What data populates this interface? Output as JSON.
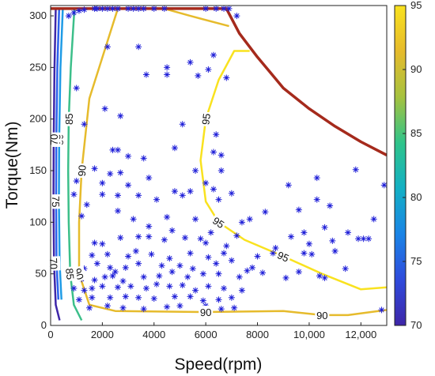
{
  "chart_data": {
    "type": "contour",
    "xlabel": "Speed(rpm)",
    "ylabel": "Torque(Nm)",
    "xlim": [
      0,
      13000
    ],
    "ylim": [
      0,
      310
    ],
    "x_ticks": [
      0,
      2000,
      4000,
      6000,
      8000,
      10000,
      12000
    ],
    "x_tick_labels": [
      "0",
      "2000",
      "4000",
      "6000",
      "8000",
      "10,000",
      "12,000"
    ],
    "y_ticks": [
      0,
      50,
      100,
      150,
      200,
      250,
      300
    ],
    "y_tick_labels": [
      "0",
      "50",
      "100",
      "150",
      "200",
      "250",
      "300"
    ],
    "colorbar": {
      "range": [
        70,
        95
      ],
      "ticks": [
        70,
        75,
        80,
        85,
        90,
        95
      ],
      "tick_labels": [
        "70",
        "75",
        "80",
        "85",
        "90",
        "95"
      ],
      "colors": [
        "#3e26a8",
        "#2f4bdc",
        "#1a84e6",
        "#13b0c4",
        "#2fc48a",
        "#a6c23f",
        "#e6bb2c",
        "#f9e21f"
      ]
    },
    "boundary": {
      "name": "max torque",
      "color": "#a52a1c",
      "points": [
        [
          0,
          307
        ],
        [
          6800,
          307
        ],
        [
          7300,
          283
        ],
        [
          8000,
          260
        ],
        [
          8500,
          245
        ],
        [
          9000,
          230
        ],
        [
          10000,
          210
        ],
        [
          11000,
          193
        ],
        [
          12000,
          178
        ],
        [
          13000,
          165
        ]
      ]
    },
    "contours": [
      {
        "level": 95,
        "color": "#f9e21f",
        "labels": [
          "95",
          "95",
          "95"
        ],
        "paths": [
          [
            [
              7700,
              266
            ],
            [
              7100,
              266
            ],
            [
              6500,
              238
            ],
            [
              6000,
              200
            ],
            [
              5800,
              160
            ],
            [
              6000,
              120
            ],
            [
              6500,
              100
            ],
            [
              7500,
              83
            ],
            [
              9000,
              67
            ],
            [
              10500,
              50
            ],
            [
              12000,
              35
            ],
            [
              13000,
              37
            ]
          ]
        ]
      },
      {
        "level": 90,
        "color": "#e6bb2c",
        "labels": [
          "90",
          "90",
          "90",
          "90"
        ],
        "paths": [
          [
            [
              2600,
              307
            ],
            [
              1500,
              220
            ],
            [
              1200,
              150
            ],
            [
              1100,
              100
            ],
            [
              1100,
              50
            ],
            [
              1500,
              20
            ],
            [
              2500,
              14
            ],
            [
              6000,
              13
            ],
            [
              9000,
              14
            ],
            [
              10500,
              10
            ],
            [
              11500,
              10
            ],
            [
              13000,
              15
            ]
          ],
          [
            [
              4400,
              307
            ],
            [
              5400,
              300
            ],
            [
              6900,
              290
            ]
          ]
        ]
      },
      {
        "level": 85,
        "color": "#3cbf8a",
        "labels": [
          "85",
          "85"
        ],
        "paths": [
          [
            [
              920,
              307
            ],
            [
              780,
              250
            ],
            [
              700,
              200
            ],
            [
              680,
              150
            ],
            [
              700,
              100
            ],
            [
              760,
              50
            ],
            [
              900,
              20
            ],
            [
              1200,
              5
            ]
          ]
        ]
      },
      {
        "level": 80,
        "color": "#1f9be6",
        "labels": [
          "80",
          "80"
        ],
        "paths": [
          [
            [
              470,
              307
            ],
            [
              380,
              250
            ],
            [
              330,
              180
            ],
            [
              320,
              120
            ],
            [
              350,
              60
            ],
            [
              420,
              25
            ]
          ]
        ]
      },
      {
        "level": 75,
        "color": "#2b62ec",
        "labels": [
          "75",
          "75"
        ],
        "paths": [
          [
            [
              330,
              307
            ],
            [
              260,
              250
            ],
            [
              220,
              180
            ],
            [
              210,
              120
            ],
            [
              230,
              60
            ],
            [
              300,
              25
            ]
          ]
        ]
      },
      {
        "level": 70,
        "color": "#3e26a8",
        "labels": [
          "70",
          "70"
        ],
        "paths": [
          [
            [
              200,
              307
            ],
            [
              150,
              250
            ],
            [
              120,
              180
            ],
            [
              110,
              120
            ],
            [
              130,
              60
            ],
            [
              200,
              20
            ],
            [
              350,
              5
            ]
          ]
        ]
      }
    ],
    "scatter": {
      "name": "operating points",
      "color": "#1f1fd8",
      "marker": "*",
      "points": [
        [
          2200,
          270
        ],
        [
          1000,
          230
        ],
        [
          3400,
          270
        ],
        [
          4500,
          250
        ],
        [
          5400,
          255
        ],
        [
          6300,
          262
        ],
        [
          6100,
          248
        ],
        [
          3700,
          243
        ],
        [
          4500,
          243
        ],
        [
          5700,
          242
        ],
        [
          6800,
          240
        ],
        [
          2100,
          210
        ],
        [
          1300,
          195
        ],
        [
          2700,
          203
        ],
        [
          5100,
          195
        ],
        [
          6400,
          185
        ],
        [
          2400,
          170
        ],
        [
          2600,
          170
        ],
        [
          4800,
          172
        ],
        [
          3000,
          164
        ],
        [
          3600,
          162
        ],
        [
          6300,
          168
        ],
        [
          6600,
          165
        ],
        [
          2300,
          147
        ],
        [
          2700,
          148
        ],
        [
          1700,
          152
        ],
        [
          2000,
          138
        ],
        [
          3000,
          136
        ],
        [
          3800,
          143
        ],
        [
          5600,
          150
        ],
        [
          6600,
          150
        ],
        [
          6000,
          138
        ],
        [
          6300,
          132
        ],
        [
          4800,
          130
        ],
        [
          5400,
          130
        ],
        [
          1000,
          140
        ],
        [
          900,
          127
        ],
        [
          1400,
          117
        ],
        [
          2000,
          127
        ],
        [
          2600,
          126
        ],
        [
          3400,
          126
        ],
        [
          4100,
          122
        ],
        [
          5100,
          126
        ],
        [
          6500,
          122
        ],
        [
          7000,
          128
        ],
        [
          9200,
          136
        ],
        [
          10300,
          143
        ],
        [
          11800,
          151
        ],
        [
          12900,
          136
        ],
        [
          1200,
          106
        ],
        [
          2600,
          111
        ],
        [
          3200,
          103
        ],
        [
          4500,
          105
        ],
        [
          5600,
          103
        ],
        [
          8300,
          110
        ],
        [
          9600,
          112
        ],
        [
          10300,
          122
        ],
        [
          10800,
          116
        ],
        [
          3800,
          96
        ],
        [
          4700,
          92
        ],
        [
          5800,
          84
        ],
        [
          6200,
          90
        ],
        [
          7400,
          100
        ],
        [
          7700,
          103
        ],
        [
          9300,
          86
        ],
        [
          9800,
          90
        ],
        [
          10600,
          95
        ],
        [
          11500,
          90
        ],
        [
          12100,
          84
        ],
        [
          12300,
          84
        ],
        [
          1700,
          80
        ],
        [
          2000,
          79
        ],
        [
          2700,
          85
        ],
        [
          3400,
          86
        ],
        [
          3800,
          86
        ],
        [
          4400,
          83
        ],
        [
          5200,
          85
        ],
        [
          6000,
          80
        ],
        [
          6800,
          77
        ],
        [
          7200,
          87
        ],
        [
          8700,
          75
        ],
        [
          10000,
          79
        ],
        [
          10900,
          82
        ],
        [
          11900,
          84
        ],
        [
          12500,
          103
        ],
        [
          1600,
          68
        ],
        [
          2200,
          69
        ],
        [
          3000,
          67
        ],
        [
          3300,
          72
        ],
        [
          3900,
          69
        ],
        [
          4600,
          65
        ],
        [
          5400,
          70
        ],
        [
          6100,
          66
        ],
        [
          6700,
          70
        ],
        [
          8000,
          67
        ],
        [
          8600,
          70
        ],
        [
          9800,
          70
        ],
        [
          10100,
          69
        ],
        [
          11000,
          72
        ],
        [
          1300,
          55
        ],
        [
          1800,
          60
        ],
        [
          2300,
          56
        ],
        [
          2500,
          52
        ],
        [
          2900,
          56
        ],
        [
          3400,
          60
        ],
        [
          4300,
          58
        ],
        [
          5000,
          58
        ],
        [
          5500,
          55
        ],
        [
          6400,
          60
        ],
        [
          7000,
          63
        ],
        [
          7800,
          56
        ],
        [
          8200,
          51
        ],
        [
          9100,
          46
        ],
        [
          10600,
          46
        ],
        [
          11400,
          55
        ],
        [
          1200,
          45
        ],
        [
          1700,
          44
        ],
        [
          2100,
          47
        ],
        [
          2400,
          48
        ],
        [
          2800,
          43
        ],
        [
          3600,
          47
        ],
        [
          4200,
          48
        ],
        [
          4700,
          52
        ],
        [
          5300,
          47
        ],
        [
          5900,
          50
        ],
        [
          6500,
          50
        ],
        [
          7300,
          47
        ],
        [
          7600,
          53
        ],
        [
          9600,
          52
        ],
        [
          10400,
          48
        ],
        [
          900,
          36
        ],
        [
          1300,
          34
        ],
        [
          1600,
          36
        ],
        [
          2000,
          38
        ],
        [
          2600,
          37
        ],
        [
          3100,
          38
        ],
        [
          3700,
          36
        ],
        [
          4100,
          40
        ],
        [
          4600,
          38
        ],
        [
          5100,
          39
        ],
        [
          5600,
          34
        ],
        [
          6100,
          38
        ],
        [
          6700,
          36
        ],
        [
          7400,
          34
        ],
        [
          1100,
          25
        ],
        [
          1600,
          27
        ],
        [
          2300,
          27
        ],
        [
          2900,
          28
        ],
        [
          3400,
          27
        ],
        [
          4000,
          26
        ],
        [
          4800,
          28
        ],
        [
          5400,
          28
        ],
        [
          5900,
          24
        ],
        [
          6500,
          25
        ],
        [
          7000,
          27
        ],
        [
          1500,
          17
        ],
        [
          2200,
          19
        ],
        [
          2800,
          17
        ],
        [
          3600,
          16
        ],
        [
          4500,
          18
        ],
        [
          5000,
          19
        ],
        [
          6000,
          19
        ],
        [
          6600,
          16
        ],
        [
          7100,
          17
        ],
        [
          12800,
          15
        ],
        [
          1700,
          307
        ],
        [
          1800,
          307
        ],
        [
          2000,
          307
        ],
        [
          2200,
          307
        ],
        [
          2400,
          307
        ],
        [
          2600,
          307
        ],
        [
          3000,
          307
        ],
        [
          3200,
          307
        ],
        [
          3400,
          307
        ],
        [
          3600,
          307
        ],
        [
          4000,
          307
        ],
        [
          4400,
          307
        ],
        [
          6700,
          307
        ],
        [
          6900,
          307
        ],
        [
          7200,
          300
        ],
        [
          6000,
          307
        ],
        [
          6400,
          307
        ],
        [
          700,
          300
        ],
        [
          900,
          303
        ],
        [
          1100,
          305
        ],
        [
          1300,
          306
        ]
      ]
    }
  }
}
